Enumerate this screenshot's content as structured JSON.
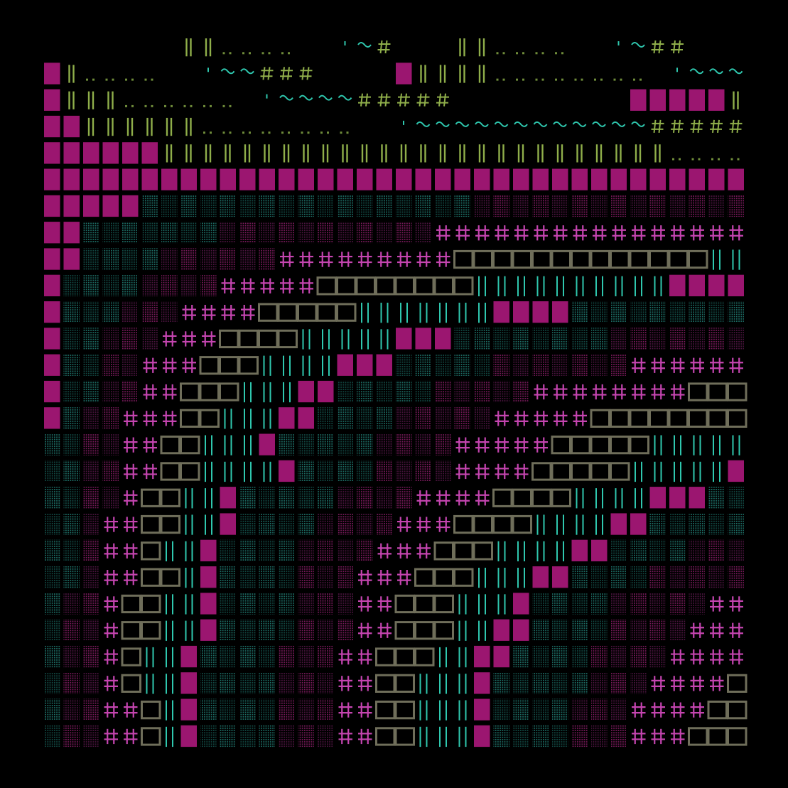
{
  "palette": {
    "background": "#000000",
    "magenta_block": "#9b1670",
    "magenta_dot": "#7a1a5c",
    "magenta_dot_dark": "#4d1440",
    "teal_dot": "#1d6e66",
    "teal_dot_dark": "#124a45",
    "teal_line": "#2fc7ae",
    "plus": "#c545b0",
    "box": "#6f6e5a",
    "green": "#8fae4a",
    "green_dim": "#6f8c3a"
  },
  "glyph_legend": {
    "block": "solid-block-icon",
    "dots": "dotted-shade-icon",
    "double-line": "double-bar-icon",
    "plus": "double-cross-icon",
    "box": "hollow-box-icon",
    "green-bar": "green-bar-icon",
    "dots-low": "low-dots-icon",
    "tilde": "tilde-icon",
    "hash": "hash-icon"
  },
  "rows": [
    [
      [
        7,
        "s"
      ],
      [
        2,
        "b"
      ],
      [
        4,
        "g"
      ],
      [
        2,
        "s"
      ],
      [
        1,
        "c"
      ],
      [
        1,
        "t"
      ],
      [
        1,
        "h"
      ],
      [
        3,
        "s"
      ],
      [
        2,
        "b"
      ],
      [
        4,
        "g"
      ],
      [
        2,
        "s"
      ],
      [
        1,
        "c"
      ],
      [
        1,
        "t"
      ],
      [
        2,
        "h"
      ],
      [
        5,
        "s"
      ],
      [
        1,
        "M"
      ],
      [
        3,
        "b"
      ],
      [
        8,
        "g"
      ],
      [
        3,
        "s"
      ],
      [
        3,
        "c"
      ],
      [
        3,
        "t"
      ],
      [
        4,
        "h"
      ]
    ],
    [
      [
        1,
        "M"
      ],
      [
        1,
        "b"
      ],
      [
        4,
        "g"
      ],
      [
        2,
        "s"
      ],
      [
        1,
        "c"
      ],
      [
        2,
        "t"
      ],
      [
        3,
        "h"
      ],
      [
        4,
        "s"
      ],
      [
        1,
        "M"
      ],
      [
        4,
        "b"
      ],
      [
        8,
        "g"
      ],
      [
        1,
        "s"
      ],
      [
        1,
        "c"
      ],
      [
        5,
        "t"
      ],
      [
        6,
        "h"
      ]
    ],
    [
      [
        1,
        "M"
      ],
      [
        3,
        "b"
      ],
      [
        6,
        "g"
      ],
      [
        1,
        "s"
      ],
      [
        1,
        "c"
      ],
      [
        4,
        "t"
      ],
      [
        5,
        "h"
      ],
      [
        9,
        "s"
      ],
      [
        5,
        "M"
      ],
      [
        7,
        "b"
      ]
    ],
    [
      [
        2,
        "M"
      ],
      [
        6,
        "b"
      ],
      [
        8,
        "g"
      ],
      [
        2,
        "s"
      ],
      [
        1,
        "c"
      ],
      [
        12,
        "t"
      ],
      [
        8,
        "h"
      ]
    ],
    [
      [
        6,
        "M"
      ],
      [
        26,
        "b"
      ],
      [
        6,
        "g"
      ]
    ],
    [
      [
        38,
        "M"
      ]
    ],
    [
      [
        5,
        "M"
      ],
      [
        17,
        "T"
      ],
      [
        16,
        "P"
      ]
    ],
    [
      [
        2,
        "M"
      ],
      [
        7,
        "T"
      ],
      [
        11,
        "P"
      ],
      [
        18,
        "X"
      ]
    ],
    [
      [
        2,
        "M"
      ],
      [
        4,
        "T"
      ],
      [
        6,
        "P"
      ],
      [
        9,
        "X"
      ],
      [
        13,
        "B"
      ],
      [
        4,
        "L"
      ]
    ],
    [
      [
        1,
        "M"
      ],
      [
        4,
        "T"
      ],
      [
        4,
        "P"
      ],
      [
        5,
        "X"
      ],
      [
        8,
        "B"
      ],
      [
        10,
        "L"
      ],
      [
        4,
        "M"
      ],
      [
        2,
        "T"
      ]
    ],
    [
      [
        1,
        "M"
      ],
      [
        3,
        "T"
      ],
      [
        3,
        "P"
      ],
      [
        4,
        "X"
      ],
      [
        5,
        "B"
      ],
      [
        7,
        "L"
      ],
      [
        4,
        "M"
      ],
      [
        11,
        "T"
      ]
    ],
    [
      [
        1,
        "M"
      ],
      [
        2,
        "T"
      ],
      [
        3,
        "P"
      ],
      [
        3,
        "X"
      ],
      [
        4,
        "B"
      ],
      [
        5,
        "L"
      ],
      [
        3,
        "M"
      ],
      [
        8,
        "T"
      ],
      [
        9,
        "P"
      ]
    ],
    [
      [
        1,
        "M"
      ],
      [
        2,
        "T"
      ],
      [
        2,
        "P"
      ],
      [
        3,
        "X"
      ],
      [
        3,
        "B"
      ],
      [
        4,
        "L"
      ],
      [
        3,
        "M"
      ],
      [
        5,
        "T"
      ],
      [
        7,
        "P"
      ],
      [
        8,
        "X"
      ]
    ],
    [
      [
        1,
        "M"
      ],
      [
        2,
        "T"
      ],
      [
        2,
        "P"
      ],
      [
        2,
        "X"
      ],
      [
        3,
        "B"
      ],
      [
        3,
        "L"
      ],
      [
        2,
        "M"
      ],
      [
        5,
        "T"
      ],
      [
        5,
        "P"
      ],
      [
        8,
        "X"
      ],
      [
        4,
        "B"
      ],
      [
        1,
        "L"
      ]
    ],
    [
      [
        1,
        "M"
      ],
      [
        1,
        "T"
      ],
      [
        2,
        "P"
      ],
      [
        3,
        "X"
      ],
      [
        2,
        "B"
      ],
      [
        3,
        "L"
      ],
      [
        2,
        "M"
      ],
      [
        4,
        "T"
      ],
      [
        5,
        "P"
      ],
      [
        5,
        "X"
      ],
      [
        8,
        "B"
      ],
      [
        2,
        "L"
      ]
    ],
    [
      [
        2,
        "T"
      ],
      [
        2,
        "P"
      ],
      [
        2,
        "X"
      ],
      [
        2,
        "B"
      ],
      [
        3,
        "L"
      ],
      [
        1,
        "M"
      ],
      [
        5,
        "T"
      ],
      [
        4,
        "P"
      ],
      [
        5,
        "X"
      ],
      [
        5,
        "B"
      ],
      [
        7,
        "L"
      ]
    ],
    [
      [
        2,
        "T"
      ],
      [
        2,
        "P"
      ],
      [
        2,
        "X"
      ],
      [
        2,
        "B"
      ],
      [
        4,
        "L"
      ],
      [
        1,
        "M"
      ],
      [
        4,
        "T"
      ],
      [
        4,
        "P"
      ],
      [
        4,
        "X"
      ],
      [
        5,
        "B"
      ],
      [
        5,
        "L"
      ],
      [
        3,
        "M"
      ],
      [
        1,
        "T"
      ]
    ],
    [
      [
        2,
        "T"
      ],
      [
        2,
        "P"
      ],
      [
        1,
        "X"
      ],
      [
        2,
        "B"
      ],
      [
        2,
        "L"
      ],
      [
        1,
        "M"
      ],
      [
        5,
        "T"
      ],
      [
        4,
        "P"
      ],
      [
        4,
        "X"
      ],
      [
        4,
        "B"
      ],
      [
        4,
        "L"
      ],
      [
        3,
        "M"
      ],
      [
        4,
        "T"
      ]
    ],
    [
      [
        2,
        "T"
      ],
      [
        1,
        "P"
      ],
      [
        2,
        "X"
      ],
      [
        2,
        "B"
      ],
      [
        2,
        "L"
      ],
      [
        1,
        "M"
      ],
      [
        4,
        "T"
      ],
      [
        4,
        "P"
      ],
      [
        3,
        "X"
      ],
      [
        4,
        "B"
      ],
      [
        4,
        "L"
      ],
      [
        2,
        "M"
      ],
      [
        7,
        "T"
      ]
    ],
    [
      [
        2,
        "T"
      ],
      [
        1,
        "P"
      ],
      [
        2,
        "X"
      ],
      [
        1,
        "B"
      ],
      [
        2,
        "L"
      ],
      [
        1,
        "M"
      ],
      [
        4,
        "T"
      ],
      [
        4,
        "P"
      ],
      [
        3,
        "X"
      ],
      [
        3,
        "B"
      ],
      [
        4,
        "L"
      ],
      [
        2,
        "M"
      ],
      [
        4,
        "T"
      ],
      [
        5,
        "P"
      ]
    ],
    [
      [
        2,
        "T"
      ],
      [
        1,
        "P"
      ],
      [
        2,
        "X"
      ],
      [
        2,
        "B"
      ],
      [
        1,
        "L"
      ],
      [
        1,
        "M"
      ],
      [
        4,
        "T"
      ],
      [
        3,
        "P"
      ],
      [
        3,
        "X"
      ],
      [
        3,
        "B"
      ],
      [
        3,
        "L"
      ],
      [
        2,
        "M"
      ],
      [
        4,
        "T"
      ],
      [
        5,
        "P"
      ],
      [
        3,
        "X"
      ]
    ],
    [
      [
        1,
        "T"
      ],
      [
        2,
        "P"
      ],
      [
        1,
        "X"
      ],
      [
        2,
        "B"
      ],
      [
        2,
        "L"
      ],
      [
        1,
        "M"
      ],
      [
        4,
        "T"
      ],
      [
        3,
        "P"
      ],
      [
        2,
        "X"
      ],
      [
        3,
        "B"
      ],
      [
        3,
        "L"
      ],
      [
        1,
        "M"
      ],
      [
        4,
        "T"
      ],
      [
        5,
        "P"
      ],
      [
        4,
        "X"
      ],
      [
        1,
        "B"
      ]
    ],
    [
      [
        1,
        "T"
      ],
      [
        2,
        "P"
      ],
      [
        1,
        "X"
      ],
      [
        2,
        "B"
      ],
      [
        2,
        "L"
      ],
      [
        1,
        "M"
      ],
      [
        4,
        "T"
      ],
      [
        3,
        "P"
      ],
      [
        2,
        "X"
      ],
      [
        3,
        "B"
      ],
      [
        2,
        "L"
      ],
      [
        2,
        "M"
      ],
      [
        4,
        "T"
      ],
      [
        4,
        "P"
      ],
      [
        4,
        "X"
      ],
      [
        3,
        "B"
      ]
    ],
    [
      [
        1,
        "T"
      ],
      [
        2,
        "P"
      ],
      [
        1,
        "X"
      ],
      [
        1,
        "B"
      ],
      [
        2,
        "L"
      ],
      [
        1,
        "M"
      ],
      [
        4,
        "T"
      ],
      [
        3,
        "P"
      ],
      [
        2,
        "X"
      ],
      [
        3,
        "B"
      ],
      [
        2,
        "L"
      ],
      [
        2,
        "M"
      ],
      [
        4,
        "T"
      ],
      [
        4,
        "P"
      ],
      [
        4,
        "X"
      ],
      [
        5,
        "B"
      ]
    ],
    [
      [
        1,
        "T"
      ],
      [
        2,
        "P"
      ],
      [
        1,
        "X"
      ],
      [
        1,
        "B"
      ],
      [
        2,
        "L"
      ],
      [
        1,
        "M"
      ],
      [
        4,
        "T"
      ],
      [
        3,
        "P"
      ],
      [
        2,
        "X"
      ],
      [
        2,
        "B"
      ],
      [
        3,
        "L"
      ],
      [
        1,
        "M"
      ],
      [
        5,
        "T"
      ],
      [
        3,
        "P"
      ],
      [
        4,
        "X"
      ],
      [
        4,
        "B"
      ],
      [
        4,
        "L"
      ]
    ],
    [
      [
        1,
        "T"
      ],
      [
        2,
        "P"
      ],
      [
        2,
        "X"
      ],
      [
        1,
        "B"
      ],
      [
        1,
        "L"
      ],
      [
        1,
        "M"
      ],
      [
        4,
        "T"
      ],
      [
        3,
        "P"
      ],
      [
        2,
        "X"
      ],
      [
        2,
        "B"
      ],
      [
        3,
        "L"
      ],
      [
        1,
        "M"
      ],
      [
        4,
        "T"
      ],
      [
        3,
        "P"
      ],
      [
        4,
        "X"
      ],
      [
        4,
        "B"
      ],
      [
        3,
        "L"
      ],
      [
        2,
        "M"
      ]
    ],
    [
      [
        1,
        "T"
      ],
      [
        2,
        "P"
      ],
      [
        2,
        "X"
      ],
      [
        1,
        "B"
      ],
      [
        1,
        "L"
      ],
      [
        1,
        "M"
      ],
      [
        4,
        "T"
      ],
      [
        3,
        "P"
      ],
      [
        2,
        "X"
      ],
      [
        2,
        "B"
      ],
      [
        3,
        "L"
      ],
      [
        1,
        "M"
      ],
      [
        4,
        "T"
      ],
      [
        3,
        "P"
      ],
      [
        3,
        "X"
      ],
      [
        4,
        "B"
      ],
      [
        3,
        "L"
      ],
      [
        2,
        "M"
      ]
    ]
  ]
}
